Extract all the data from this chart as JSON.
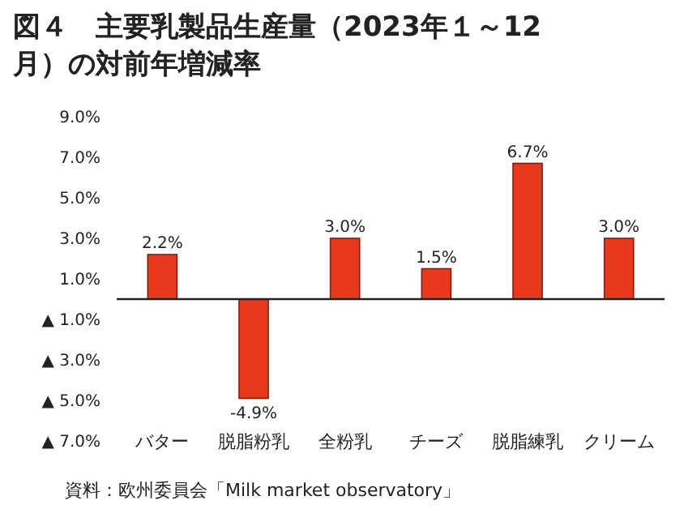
{
  "chart_data": {
    "type": "bar",
    "title": "図４　主要乳製品生産量（2023年１～12月）の対前年増減率",
    "categories": [
      "バター",
      "脱脂粉乳",
      "全粉乳",
      "チーズ",
      "脱脂練乳",
      "クリーム"
    ],
    "values": [
      2.2,
      -4.9,
      3.0,
      1.5,
      6.7,
      3.0
    ],
    "value_labels": [
      "2.2%",
      "-4.9%",
      "3.0%",
      "1.5%",
      "6.7%",
      "3.0%"
    ],
    "color": "#e8391d",
    "ylim": [
      -7,
      9
    ],
    "yticks": [
      {
        "value": 9,
        "label": "9.0%"
      },
      {
        "value": 7,
        "label": "7.0%"
      },
      {
        "value": 5,
        "label": "5.0%"
      },
      {
        "value": 3,
        "label": "3.0%"
      },
      {
        "value": 1,
        "label": "1.0%"
      },
      {
        "value": -1,
        "label": "▲ 1.0%"
      },
      {
        "value": -3,
        "label": "▲ 3.0%"
      },
      {
        "value": -5,
        "label": "▲ 5.0%"
      },
      {
        "value": -7,
        "label": "▲ 7.0%"
      }
    ],
    "annotations": [
      "資料：欧州委員会「Milk market observatory」"
    ]
  }
}
